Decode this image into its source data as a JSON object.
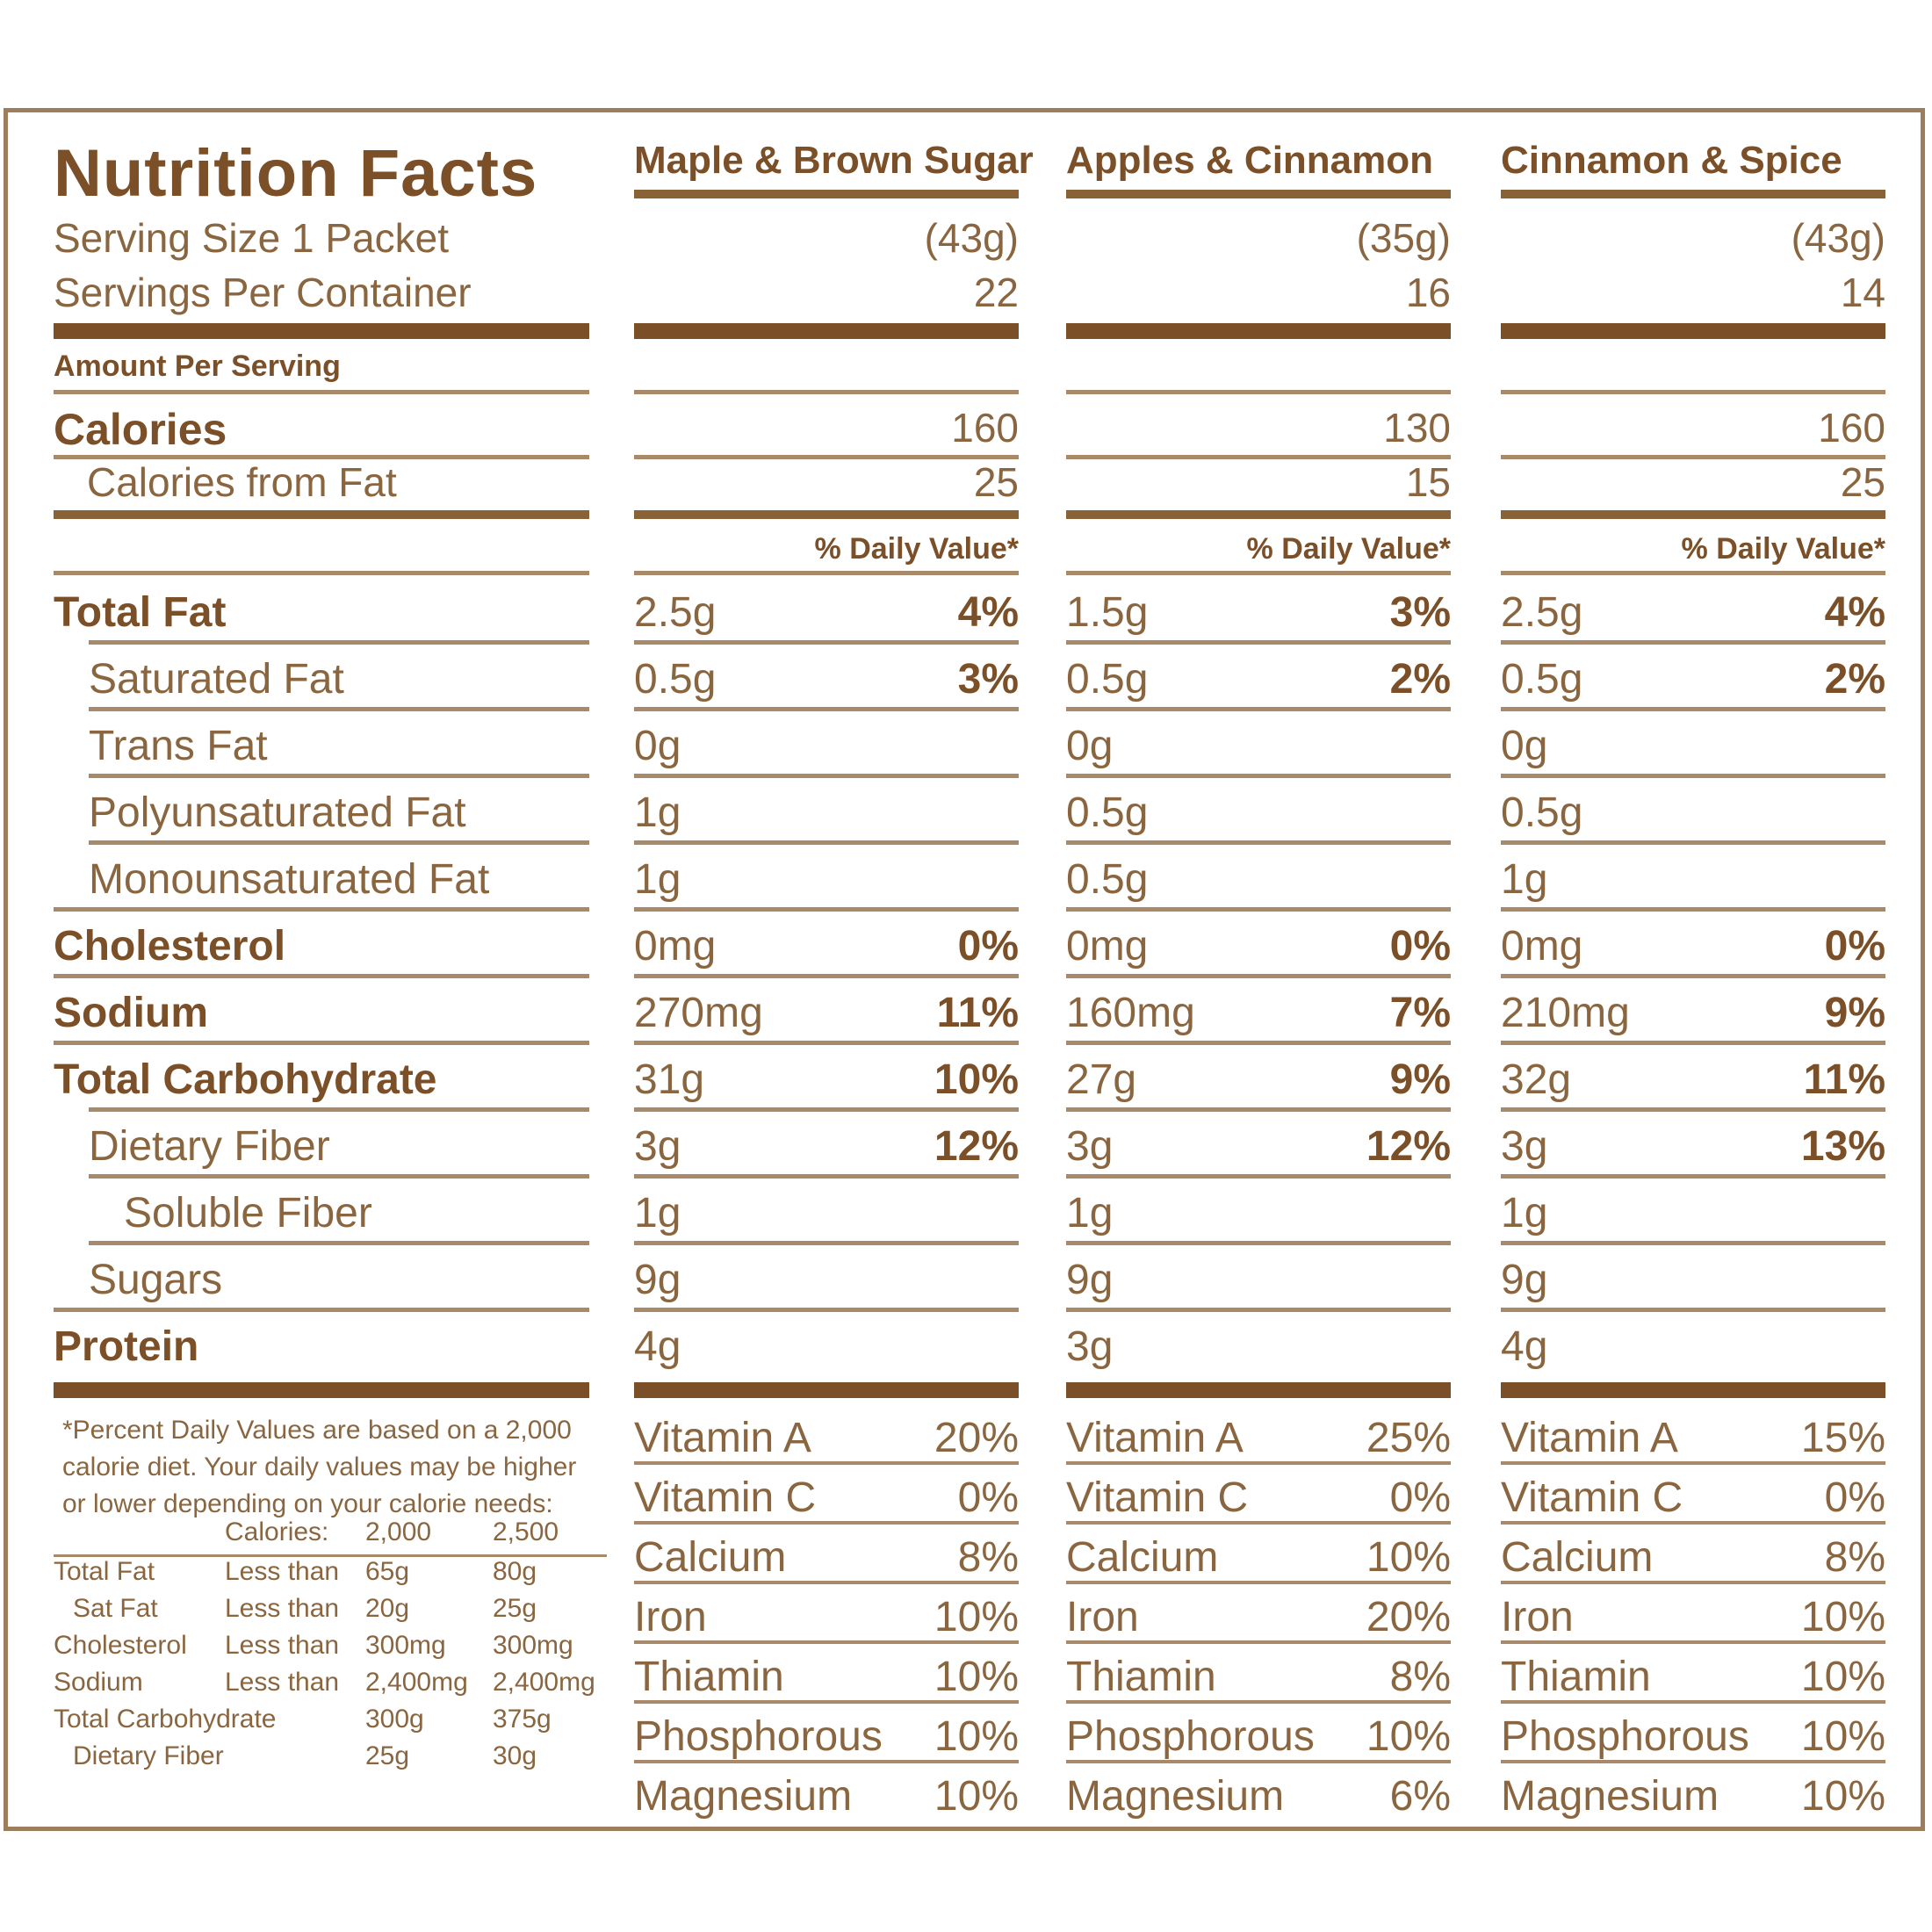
{
  "label": {
    "title": "Nutrition Facts",
    "serving_size": "Serving Size 1 Packet",
    "servings_per_container": "Servings Per Container",
    "amount_per_serving": "Amount Per Serving",
    "calories": "Calories",
    "calories_from_fat": "Calories from Fat",
    "daily_value_header": "% Daily Value*",
    "nutrients": [
      {
        "name": "Total Fat",
        "bold": true,
        "indent": 0
      },
      {
        "name": "Saturated Fat",
        "bold": false,
        "indent": 1
      },
      {
        "name": "Trans Fat",
        "bold": false,
        "indent": 1
      },
      {
        "name": "Polyunsaturated Fat",
        "bold": false,
        "indent": 1
      },
      {
        "name": "Monounsaturated Fat",
        "bold": false,
        "indent": 1
      },
      {
        "name": "Cholesterol",
        "bold": true,
        "indent": 0
      },
      {
        "name": "Sodium",
        "bold": true,
        "indent": 0
      },
      {
        "name": "Total Carbohydrate",
        "bold": true,
        "indent": 0
      },
      {
        "name": "Dietary Fiber",
        "bold": false,
        "indent": 1
      },
      {
        "name": "Soluble Fiber",
        "bold": false,
        "indent": 2
      },
      {
        "name": "Sugars",
        "bold": false,
        "indent": 1
      },
      {
        "name": "Protein",
        "bold": true,
        "indent": 0
      }
    ],
    "footnote": "*Percent Daily Values are based on a 2,000 calorie diet. Your daily values may be higher or lower depending on your calorie needs:",
    "dv_table": {
      "header": [
        "",
        "Calories:",
        "2,000",
        "2,500"
      ],
      "rows": [
        [
          "Total Fat",
          "Less than",
          "65g",
          "80g"
        ],
        [
          "Sat Fat",
          "Less than",
          "20g",
          "25g"
        ],
        [
          "Cholesterol",
          "Less than",
          "300mg",
          "300mg"
        ],
        [
          "Sodium",
          "Less than",
          "2,400mg",
          "2,400mg"
        ],
        [
          "Total Carbohydrate",
          "",
          "300g",
          "375g"
        ],
        [
          "Dietary Fiber",
          "",
          "25g",
          "30g"
        ]
      ]
    }
  },
  "varieties": [
    {
      "name": "Maple & Brown Sugar",
      "serving_size": "(43g)",
      "servings": "22",
      "calories": "160",
      "calories_from_fat": "25",
      "daily_value_header": "% Daily Value*",
      "nutrients": [
        {
          "amount": "2.5g",
          "dv": "4%"
        },
        {
          "amount": "0.5g",
          "dv": "3%"
        },
        {
          "amount": "0g",
          "dv": ""
        },
        {
          "amount": "1g",
          "dv": ""
        },
        {
          "amount": "1g",
          "dv": ""
        },
        {
          "amount": "0mg",
          "dv": "0%"
        },
        {
          "amount": "270mg",
          "dv": "11%"
        },
        {
          "amount": "31g",
          "dv": "10%"
        },
        {
          "amount": "3g",
          "dv": "12%"
        },
        {
          "amount": "1g",
          "dv": ""
        },
        {
          "amount": "9g",
          "dv": ""
        },
        {
          "amount": "4g",
          "dv": ""
        }
      ],
      "vitamins": [
        {
          "name": "Vitamin A",
          "pct": "20%"
        },
        {
          "name": "Vitamin C",
          "pct": "0%"
        },
        {
          "name": "Calcium",
          "pct": "8%"
        },
        {
          "name": "Iron",
          "pct": "10%"
        },
        {
          "name": "Thiamin",
          "pct": "10%"
        },
        {
          "name": "Phosphorous",
          "pct": "10%"
        },
        {
          "name": "Magnesium",
          "pct": "10%"
        }
      ]
    },
    {
      "name": "Apples & Cinnamon",
      "serving_size": "(35g)",
      "servings": "16",
      "calories": "130",
      "calories_from_fat": "15",
      "daily_value_header": "% Daily Value*",
      "nutrients": [
        {
          "amount": "1.5g",
          "dv": "3%"
        },
        {
          "amount": "0.5g",
          "dv": "2%"
        },
        {
          "amount": "0g",
          "dv": ""
        },
        {
          "amount": "0.5g",
          "dv": ""
        },
        {
          "amount": "0.5g",
          "dv": ""
        },
        {
          "amount": "0mg",
          "dv": "0%"
        },
        {
          "amount": "160mg",
          "dv": "7%"
        },
        {
          "amount": "27g",
          "dv": "9%"
        },
        {
          "amount": "3g",
          "dv": "12%"
        },
        {
          "amount": "1g",
          "dv": ""
        },
        {
          "amount": "9g",
          "dv": ""
        },
        {
          "amount": "3g",
          "dv": ""
        }
      ],
      "vitamins": [
        {
          "name": "Vitamin A",
          "pct": "25%"
        },
        {
          "name": "Vitamin C",
          "pct": "0%"
        },
        {
          "name": "Calcium",
          "pct": "10%"
        },
        {
          "name": "Iron",
          "pct": "20%"
        },
        {
          "name": "Thiamin",
          "pct": "8%"
        },
        {
          "name": "Phosphorous",
          "pct": "10%"
        },
        {
          "name": "Magnesium",
          "pct": "6%"
        }
      ]
    },
    {
      "name": "Cinnamon & Spice",
      "serving_size": "(43g)",
      "servings": "14",
      "calories": "160",
      "calories_from_fat": "25",
      "daily_value_header": "% Daily Value*",
      "nutrients": [
        {
          "amount": "2.5g",
          "dv": "4%"
        },
        {
          "amount": "0.5g",
          "dv": "2%"
        },
        {
          "amount": "0g",
          "dv": ""
        },
        {
          "amount": "0.5g",
          "dv": ""
        },
        {
          "amount": "1g",
          "dv": ""
        },
        {
          "amount": "0mg",
          "dv": "0%"
        },
        {
          "amount": "210mg",
          "dv": "9%"
        },
        {
          "amount": "32g",
          "dv": "11%"
        },
        {
          "amount": "3g",
          "dv": "13%"
        },
        {
          "amount": "1g",
          "dv": ""
        },
        {
          "amount": "9g",
          "dv": ""
        },
        {
          "amount": "4g",
          "dv": ""
        }
      ],
      "vitamins": [
        {
          "name": "Vitamin A",
          "pct": "15%"
        },
        {
          "name": "Vitamin C",
          "pct": "0%"
        },
        {
          "name": "Calcium",
          "pct": "8%"
        },
        {
          "name": "Iron",
          "pct": "10%"
        },
        {
          "name": "Thiamin",
          "pct": "10%"
        },
        {
          "name": "Phosphorous",
          "pct": "10%"
        },
        {
          "name": "Magnesium",
          "pct": "10%"
        }
      ]
    }
  ],
  "colors": {
    "border": "#9c7e5c",
    "heading": "#7b4f27",
    "text": "#8a6640",
    "rule": "#a8896a"
  }
}
